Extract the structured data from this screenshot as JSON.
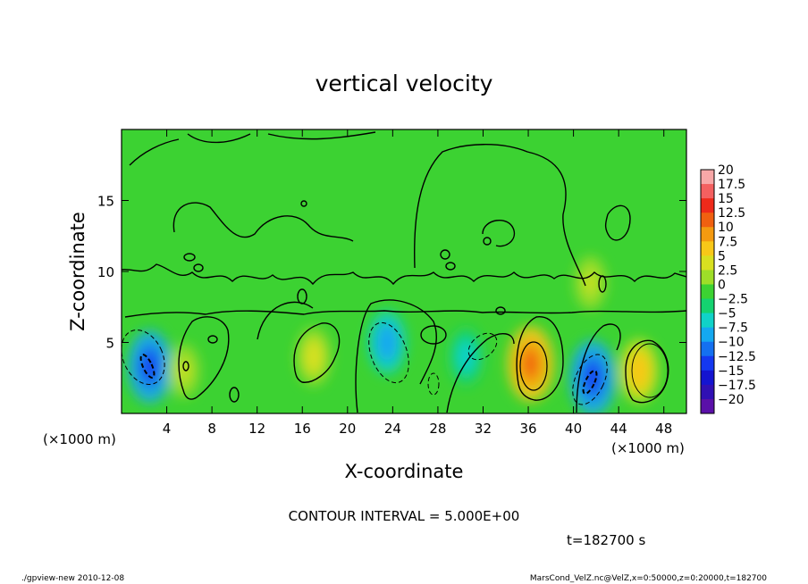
{
  "chart_data": {
    "type": "heatmap",
    "title": "vertical velocity",
    "xlabel": "X-coordinate",
    "ylabel": "Z-coordinate",
    "x_unit_label": "(×1000 m)",
    "x_unit_label_right": "(×1000 m)",
    "xlim": [
      0,
      50
    ],
    "ylim": [
      0,
      20
    ],
    "x_ticks": [
      4,
      8,
      12,
      16,
      20,
      24,
      28,
      32,
      36,
      40,
      44,
      48
    ],
    "y_ticks": [
      5,
      10,
      15
    ],
    "contour_interval_text": "CONTOUR INTERVAL = 5.000E+00",
    "time_text": "t=182700 s",
    "colorbar": {
      "levels": [
        "20",
        "17.5",
        "15",
        "12.5",
        "10",
        "7.5",
        "5",
        "2.5",
        "0",
        "−2.5",
        "−5",
        "−7.5",
        "−10",
        "−12.5",
        "−15",
        "−17.5",
        "−20"
      ],
      "colors": [
        "#f8a8a8",
        "#f46060",
        "#ee2a1a",
        "#f06010",
        "#f49a10",
        "#f8c818",
        "#d8e020",
        "#9ede28",
        "#3cd232",
        "#14d270",
        "#10d2c8",
        "#14a8f0",
        "#1470f0",
        "#1438f0",
        "#1414d0",
        "#3010b4",
        "#5a10a8"
      ]
    },
    "features": [
      {
        "sign": "negative",
        "x": 2.5,
        "z": 3.3,
        "peak": -12
      },
      {
        "sign": "positive",
        "x": 5.5,
        "z": 3.0,
        "peak": 4
      },
      {
        "sign": "positive",
        "x": 17.0,
        "z": 4.0,
        "peak": 6
      },
      {
        "sign": "negative",
        "x": 23.5,
        "z": 5.0,
        "peak": -8
      },
      {
        "sign": "negative",
        "x": 30.5,
        "z": 4.0,
        "peak": -6
      },
      {
        "sign": "positive",
        "x": 36.2,
        "z": 3.5,
        "peak": 13
      },
      {
        "sign": "negative",
        "x": 41.7,
        "z": 2.5,
        "peak": -13
      },
      {
        "sign": "positive",
        "x": 45.8,
        "z": 3.0,
        "peak": 8
      },
      {
        "sign": "positive",
        "x": 41.5,
        "z": 9.2,
        "peak": 4
      }
    ]
  },
  "footer": {
    "left": "./gpview-new  2010-12-08",
    "right": "MarsCond_VelZ.nc@VelZ,x=0:50000,z=0:20000,t=182700"
  }
}
